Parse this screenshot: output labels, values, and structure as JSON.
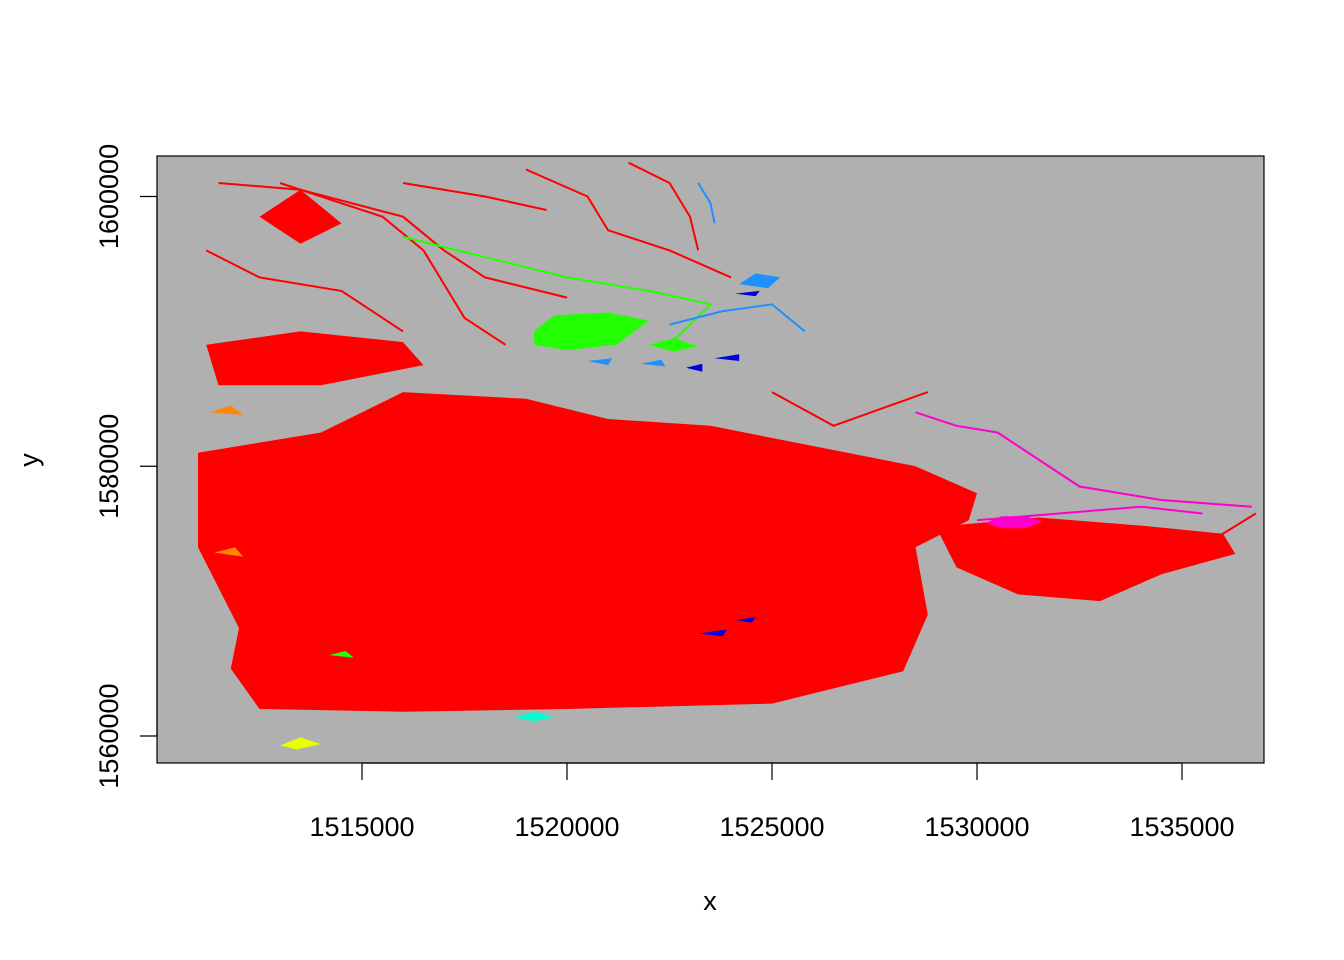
{
  "chart_data": {
    "type": "heatmap",
    "subtype": "raster-map",
    "title": "",
    "xlabel": "x",
    "ylabel": "y",
    "xlim": [
      1510000,
      1537000
    ],
    "ylim": [
      1558000,
      1603000
    ],
    "x_ticks": [
      1515000,
      1520000,
      1525000,
      1530000,
      1535000
    ],
    "x_tick_labels": [
      "1515000",
      "1520000",
      "1525000",
      "1530000",
      "1535000"
    ],
    "y_ticks": [
      1560000,
      1580000,
      1600000
    ],
    "y_tick_labels": [
      "1560000",
      "1580000",
      "1600000"
    ],
    "background_color": "#b0b0b0",
    "grid": false,
    "legend": "none",
    "class_colors": {
      "main": "#ff0000",
      "green": "#22ff00",
      "light_blue": "#1e90ff",
      "dark_blue": "#0000dd",
      "magenta": "#ff00cc",
      "orange": "#ff8800",
      "yellow": "#e8ff00",
      "cyan": "#00ffcc"
    },
    "regions": [
      {
        "class": "main",
        "polygon": [
          [
            1511000,
            1581000
          ],
          [
            1514000,
            1582500
          ],
          [
            1516000,
            1585500
          ],
          [
            1519000,
            1585000
          ],
          [
            1521000,
            1583500
          ],
          [
            1523500,
            1583000
          ],
          [
            1526000,
            1581500
          ],
          [
            1528500,
            1580000
          ],
          [
            1530000,
            1578000
          ],
          [
            1529800,
            1576000
          ],
          [
            1528500,
            1574000
          ],
          [
            1528800,
            1569000
          ],
          [
            1528200,
            1564800
          ],
          [
            1525000,
            1562400
          ],
          [
            1520000,
            1562000
          ],
          [
            1516000,
            1561800
          ],
          [
            1512500,
            1562000
          ],
          [
            1511800,
            1565000
          ],
          [
            1512000,
            1568000
          ],
          [
            1511000,
            1574000
          ]
        ]
      },
      {
        "class": "main",
        "polygon": [
          [
            1511200,
            1589000
          ],
          [
            1513500,
            1590000
          ],
          [
            1516000,
            1589200
          ],
          [
            1516500,
            1587500
          ],
          [
            1514000,
            1586000
          ],
          [
            1511500,
            1586000
          ]
        ]
      },
      {
        "class": "main",
        "polygon": [
          [
            1529000,
            1575500
          ],
          [
            1531500,
            1576200
          ],
          [
            1534000,
            1575600
          ],
          [
            1536000,
            1575000
          ],
          [
            1536300,
            1573500
          ],
          [
            1534500,
            1572000
          ],
          [
            1533000,
            1570000
          ],
          [
            1531000,
            1570500
          ],
          [
            1529500,
            1572500
          ]
        ]
      },
      {
        "class": "main",
        "polygon": [
          [
            1512500,
            1598500
          ],
          [
            1513500,
            1600500
          ],
          [
            1514500,
            1598000
          ],
          [
            1513500,
            1596500
          ]
        ]
      },
      {
        "class": "green",
        "polygon": [
          [
            1519200,
            1590000
          ],
          [
            1519700,
            1591200
          ],
          [
            1521000,
            1591400
          ],
          [
            1522000,
            1590800
          ],
          [
            1521200,
            1589000
          ],
          [
            1520000,
            1588600
          ],
          [
            1519200,
            1589000
          ]
        ]
      },
      {
        "class": "green",
        "polygon": [
          [
            1522000,
            1589000
          ],
          [
            1522600,
            1589500
          ],
          [
            1523200,
            1588900
          ],
          [
            1522600,
            1588500
          ]
        ]
      },
      {
        "class": "light_blue",
        "polygon": [
          [
            1524200,
            1593500
          ],
          [
            1524600,
            1594300
          ],
          [
            1525200,
            1594000
          ],
          [
            1524900,
            1593200
          ]
        ]
      },
      {
        "class": "light_blue",
        "polygon": [
          [
            1520500,
            1587800
          ],
          [
            1521100,
            1588000
          ],
          [
            1521000,
            1587500
          ]
        ]
      },
      {
        "class": "light_blue",
        "polygon": [
          [
            1521800,
            1587600
          ],
          [
            1522300,
            1587900
          ],
          [
            1522400,
            1587400
          ]
        ]
      },
      {
        "class": "dark_blue",
        "polygon": [
          [
            1524100,
            1592800
          ],
          [
            1524700,
            1593000
          ],
          [
            1524600,
            1592600
          ]
        ]
      },
      {
        "class": "dark_blue",
        "polygon": [
          [
            1523600,
            1588000
          ],
          [
            1524200,
            1588300
          ],
          [
            1524200,
            1587800
          ]
        ]
      },
      {
        "class": "dark_blue",
        "polygon": [
          [
            1522900,
            1587300
          ],
          [
            1523300,
            1587600
          ],
          [
            1523300,
            1587000
          ]
        ]
      },
      {
        "class": "dark_blue",
        "polygon": [
          [
            1524100,
            1568600
          ],
          [
            1524600,
            1568800
          ],
          [
            1524500,
            1568400
          ]
        ]
      },
      {
        "class": "dark_blue",
        "polygon": [
          [
            1523200,
            1567600
          ],
          [
            1523900,
            1567900
          ],
          [
            1523800,
            1567400
          ]
        ]
      },
      {
        "class": "magenta",
        "polygon": [
          [
            1530200,
            1575800
          ],
          [
            1530600,
            1576300
          ],
          [
            1531200,
            1576300
          ],
          [
            1531600,
            1575900
          ],
          [
            1531200,
            1575400
          ],
          [
            1530600,
            1575400
          ]
        ]
      },
      {
        "class": "orange",
        "polygon": [
          [
            1511300,
            1584000
          ],
          [
            1511800,
            1584500
          ],
          [
            1512100,
            1583800
          ]
        ]
      },
      {
        "class": "orange",
        "polygon": [
          [
            1511400,
            1573600
          ],
          [
            1511900,
            1574000
          ],
          [
            1512100,
            1573300
          ]
        ]
      },
      {
        "class": "yellow",
        "polygon": [
          [
            1513000,
            1559300
          ],
          [
            1513500,
            1559900
          ],
          [
            1514000,
            1559400
          ],
          [
            1513400,
            1559000
          ]
        ]
      },
      {
        "class": "cyan",
        "polygon": [
          [
            1518700,
            1561400
          ],
          [
            1519200,
            1561800
          ],
          [
            1519700,
            1561400
          ],
          [
            1519200,
            1561100
          ]
        ]
      },
      {
        "class": "green",
        "polygon": [
          [
            1514200,
            1566000
          ],
          [
            1514600,
            1566300
          ],
          [
            1514800,
            1565800
          ]
        ]
      }
    ],
    "lines": [
      {
        "class": "main",
        "points": [
          [
            1511500,
            1601000
          ],
          [
            1513500,
            1600500
          ],
          [
            1516000,
            1598500
          ],
          [
            1517000,
            1596000
          ],
          [
            1518000,
            1594000
          ],
          [
            1520000,
            1592500
          ]
        ]
      },
      {
        "class": "main",
        "points": [
          [
            1513000,
            1601000
          ],
          [
            1515500,
            1598500
          ],
          [
            1516500,
            1596000
          ],
          [
            1517500,
            1591000
          ],
          [
            1518500,
            1589000
          ]
        ]
      },
      {
        "class": "main",
        "points": [
          [
            1519000,
            1602000
          ],
          [
            1520500,
            1600000
          ],
          [
            1521000,
            1597500
          ],
          [
            1522500,
            1596000
          ],
          [
            1524000,
            1594000
          ]
        ]
      },
      {
        "class": "main",
        "points": [
          [
            1521500,
            1602500
          ],
          [
            1522500,
            1601000
          ],
          [
            1523000,
            1598500
          ],
          [
            1523200,
            1596000
          ]
        ]
      },
      {
        "class": "main",
        "points": [
          [
            1525000,
            1585500
          ],
          [
            1526500,
            1583000
          ],
          [
            1528800,
            1585500
          ]
        ]
      },
      {
        "class": "main",
        "points": [
          [
            1530500,
            1575400
          ],
          [
            1532500,
            1574000
          ],
          [
            1533500,
            1571500
          ],
          [
            1535200,
            1573500
          ],
          [
            1536800,
            1576500
          ]
        ]
      },
      {
        "class": "main",
        "points": [
          [
            1511200,
            1596000
          ],
          [
            1512500,
            1594000
          ],
          [
            1514500,
            1593000
          ],
          [
            1516000,
            1590000
          ]
        ]
      },
      {
        "class": "main",
        "points": [
          [
            1516000,
            1601000
          ],
          [
            1518000,
            1600000
          ],
          [
            1519500,
            1599000
          ]
        ]
      },
      {
        "class": "green",
        "points": [
          [
            1516000,
            1597000
          ],
          [
            1518000,
            1595500
          ],
          [
            1520000,
            1594000
          ],
          [
            1522000,
            1593000
          ],
          [
            1523500,
            1592000
          ],
          [
            1522500,
            1589000
          ]
        ]
      },
      {
        "class": "light_blue",
        "points": [
          [
            1522500,
            1590500
          ],
          [
            1523800,
            1591500
          ],
          [
            1525000,
            1592000
          ],
          [
            1525800,
            1590000
          ]
        ]
      },
      {
        "class": "light_blue",
        "points": [
          [
            1523200,
            1601000
          ],
          [
            1523500,
            1599500
          ],
          [
            1523600,
            1598000
          ]
        ]
      },
      {
        "class": "magenta",
        "points": [
          [
            1528500,
            1584000
          ],
          [
            1529500,
            1583000
          ],
          [
            1530500,
            1582500
          ],
          [
            1531500,
            1580500
          ],
          [
            1532500,
            1578500
          ],
          [
            1534500,
            1577500
          ],
          [
            1536700,
            1577000
          ]
        ]
      },
      {
        "class": "magenta",
        "points": [
          [
            1530000,
            1576000
          ],
          [
            1532000,
            1576500
          ],
          [
            1534000,
            1577000
          ],
          [
            1535500,
            1576500
          ]
        ]
      }
    ]
  }
}
